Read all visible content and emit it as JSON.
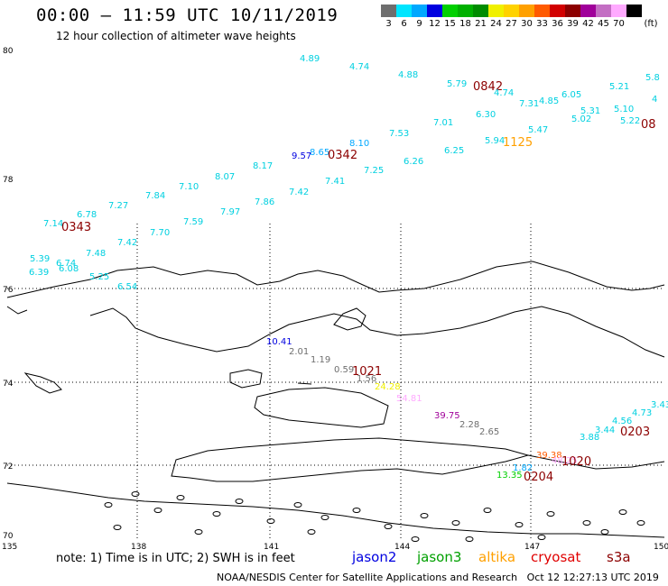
{
  "header": {
    "title": "00:00 – 11:59 UTC 10/11/2019",
    "subtitle": "12 hour collection of altimeter wave heights"
  },
  "legend": {
    "unit": "(ft)",
    "bins": [
      {
        "label": "3",
        "color": "#6e6e6e"
      },
      {
        "label": "6",
        "color": "#00e5ff"
      },
      {
        "label": "9",
        "color": "#00a8ff"
      },
      {
        "label": "12",
        "color": "#0000e0"
      },
      {
        "label": "15",
        "color": "#00d000"
      },
      {
        "label": "18",
        "color": "#00b000"
      },
      {
        "label": "21",
        "color": "#008c00"
      },
      {
        "label": "24",
        "color": "#f0f000"
      },
      {
        "label": "27",
        "color": "#ffd200"
      },
      {
        "label": "30",
        "color": "#ffa000"
      },
      {
        "label": "33",
        "color": "#ff5a00"
      },
      {
        "label": "36",
        "color": "#d20000"
      },
      {
        "label": "39",
        "color": "#8c0000"
      },
      {
        "label": "42",
        "color": "#a0009a"
      },
      {
        "label": "45",
        "color": "#c36ec3"
      },
      {
        "label": "70",
        "color": "#ffaaff"
      },
      {
        "label": "",
        "color": "#000000"
      }
    ]
  },
  "axes": {
    "lat_labels": [
      "80",
      "78",
      "76",
      "74",
      "72",
      "70"
    ],
    "lon_labels": [
      "135",
      "138",
      "141",
      "144",
      "147",
      "150"
    ]
  },
  "observations": [
    {
      "t": "4.89",
      "c": "#00d0e0"
    },
    {
      "t": "4.74",
      "c": "#00d0e0"
    },
    {
      "t": "4.88",
      "c": "#00d0e0"
    },
    {
      "t": "5.79",
      "c": "#00d0e0"
    },
    {
      "t": "0842",
      "c": "#8c0000"
    },
    {
      "t": "4.74",
      "c": "#00d0e0"
    },
    {
      "t": "7.31",
      "c": "#00d0e0"
    },
    {
      "t": "4.85",
      "c": "#00d0e0"
    },
    {
      "t": "6.05",
      "c": "#00d0e0"
    },
    {
      "t": "5.21",
      "c": "#00d0e0"
    },
    {
      "t": "5.8",
      "c": "#00d0e0"
    },
    {
      "t": "4",
      "c": "#00d0e0"
    },
    {
      "t": "6.30",
      "c": "#00d0e0"
    },
    {
      "t": "5.31",
      "c": "#00d0e0"
    },
    {
      "t": "5.10",
      "c": "#00d0e0"
    },
    {
      "t": "5.02",
      "c": "#00d0e0"
    },
    {
      "t": "5.22",
      "c": "#00d0e0"
    },
    {
      "t": "08",
      "c": "#8c0000"
    },
    {
      "t": "7.01",
      "c": "#00d0e0"
    },
    {
      "t": "5.47",
      "c": "#00d0e0"
    },
    {
      "t": "7.53",
      "c": "#00d0e0"
    },
    {
      "t": "5.94",
      "c": "#00d0e0"
    },
    {
      "t": "1125",
      "c": "#ffa000"
    },
    {
      "t": "8.10",
      "c": "#00a8ff"
    },
    {
      "t": "8.65",
      "c": "#00a8ff"
    },
    {
      "t": "0342",
      "c": "#8c0000"
    },
    {
      "t": "9.57",
      "c": "#0000e0"
    },
    {
      "t": "6.25",
      "c": "#00d0e0"
    },
    {
      "t": "6.26",
      "c": "#00d0e0"
    },
    {
      "t": "7.25",
      "c": "#00d0e0"
    },
    {
      "t": "8.17",
      "c": "#00d0e0"
    },
    {
      "t": "8.07",
      "c": "#00d0e0"
    },
    {
      "t": "7.41",
      "c": "#00d0e0"
    },
    {
      "t": "7.10",
      "c": "#00d0e0"
    },
    {
      "t": "7.42",
      "c": "#00d0e0"
    },
    {
      "t": "7.84",
      "c": "#00d0e0"
    },
    {
      "t": "7.86",
      "c": "#00d0e0"
    },
    {
      "t": "7.27",
      "c": "#00d0e0"
    },
    {
      "t": "7.97",
      "c": "#00d0e0"
    },
    {
      "t": "6.78",
      "c": "#00d0e0"
    },
    {
      "t": "7.14",
      "c": "#00d0e0"
    },
    {
      "t": "0343",
      "c": "#8c0000"
    },
    {
      "t": "7.59",
      "c": "#00d0e0"
    },
    {
      "t": "7.70",
      "c": "#00d0e0"
    },
    {
      "t": "7.42",
      "c": "#00d0e0"
    },
    {
      "t": "7.48",
      "c": "#00d0e0"
    },
    {
      "t": "5.39",
      "c": "#00d0e0"
    },
    {
      "t": "6.74",
      "c": "#00d0e0"
    },
    {
      "t": "6.08",
      "c": "#00d0e0"
    },
    {
      "t": "6.39",
      "c": "#00d0e0"
    },
    {
      "t": "5.25",
      "c": "#00d0e0"
    },
    {
      "t": "6.54",
      "c": "#00d0e0"
    },
    {
      "t": "10.41",
      "c": "#0000e0"
    },
    {
      "t": "2.01",
      "c": "#6e6e6e"
    },
    {
      "t": "1.19",
      "c": "#6e6e6e"
    },
    {
      "t": "0.59",
      "c": "#6e6e6e"
    },
    {
      "t": "1021",
      "c": "#8c0000"
    },
    {
      "t": "1.56",
      "c": "#6e6e6e"
    },
    {
      "t": "24.28",
      "c": "#f0f000"
    },
    {
      "t": "54.81",
      "c": "#ffaaff"
    },
    {
      "t": "39.75",
      "c": "#a0009a"
    },
    {
      "t": "2.28",
      "c": "#6e6e6e"
    },
    {
      "t": "2.65",
      "c": "#6e6e6e"
    },
    {
      "t": "3.43",
      "c": "#00d0e0"
    },
    {
      "t": "4.73",
      "c": "#00d0e0"
    },
    {
      "t": "4.56",
      "c": "#00d0e0"
    },
    {
      "t": "3.44",
      "c": "#00d0e0"
    },
    {
      "t": "3.88",
      "c": "#00d0e0"
    },
    {
      "t": "0203",
      "c": "#8c0000"
    },
    {
      "t": "39.38",
      "c": "#ff5a00"
    },
    {
      "t": "48.25",
      "c": "#ffaaff"
    },
    {
      "t": "1020",
      "c": "#8c0000"
    },
    {
      "t": "1.82",
      "c": "#00a8ff"
    },
    {
      "t": "0204",
      "c": "#8c0000"
    },
    {
      "t": "13.35",
      "c": "#00d000"
    }
  ],
  "footer": {
    "note": "note: 1) Time is in UTC; 2) SWH is in feet",
    "satellites": [
      {
        "name": "jason2",
        "color": "#0000e0"
      },
      {
        "name": "jason3",
        "color": "#00a000"
      },
      {
        "name": "altika",
        "color": "#ffa000"
      },
      {
        "name": "cryosat",
        "color": "#e00000"
      },
      {
        "name": "s3a",
        "color": "#8c0000"
      }
    ],
    "credit": "NOAA/NESDIS Center for Satellite Applications and Research",
    "timestamp": "Oct 12 12:27:13 UTC 2019"
  }
}
